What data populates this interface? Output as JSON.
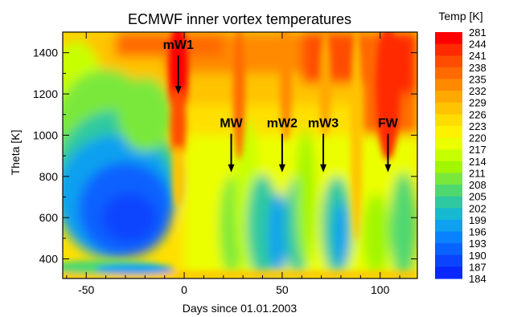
{
  "chart_data": {
    "type": "heatmap",
    "title": "ECMWF inner vortex temperatures",
    "xlabel": "Days since 01.01.2003",
    "ylabel": "Theta [K]",
    "xlim": [
      -62,
      119
    ],
    "ylim": [
      305,
      1500
    ],
    "x_ticks": [
      "-50",
      "0",
      "50",
      "100"
    ],
    "x_tick_values": [
      -50,
      0,
      50,
      100
    ],
    "y_ticks": [
      "400",
      "600",
      "800",
      "1000",
      "1200",
      "1400"
    ],
    "y_tick_values": [
      400,
      600,
      800,
      1000,
      1200,
      1400
    ],
    "colorbar": {
      "title": "Temp [K]",
      "levels": [
        "281",
        "244",
        "241",
        "238",
        "235",
        "232",
        "229",
        "226",
        "223",
        "220",
        "217",
        "214",
        "211",
        "208",
        "205",
        "202",
        "199",
        "196",
        "193",
        "190",
        "187",
        "184"
      ],
      "colors": [
        "#ff0000",
        "#ff2a00",
        "#ff4d00",
        "#ff6a00",
        "#ff8a00",
        "#ffa800",
        "#ffc300",
        "#ffdd00",
        "#fff200",
        "#ecff00",
        "#c8ff00",
        "#a2f600",
        "#7ae83a",
        "#50d870",
        "#2ec9a0",
        "#17b9d0",
        "#0fa0f0",
        "#0a82ff",
        "#0a62ff",
        "#0a44ff",
        "#0828ff"
      ]
    },
    "annotations": [
      {
        "label": "mW1",
        "x": -3,
        "y": 1200
      },
      {
        "label": "MW",
        "x": 24,
        "y": 820
      },
      {
        "label": "mW2",
        "x": 50,
        "y": 820
      },
      {
        "label": "mW3",
        "x": 71,
        "y": 820
      },
      {
        "label": "FW",
        "x": 104,
        "y": 820
      }
    ]
  }
}
